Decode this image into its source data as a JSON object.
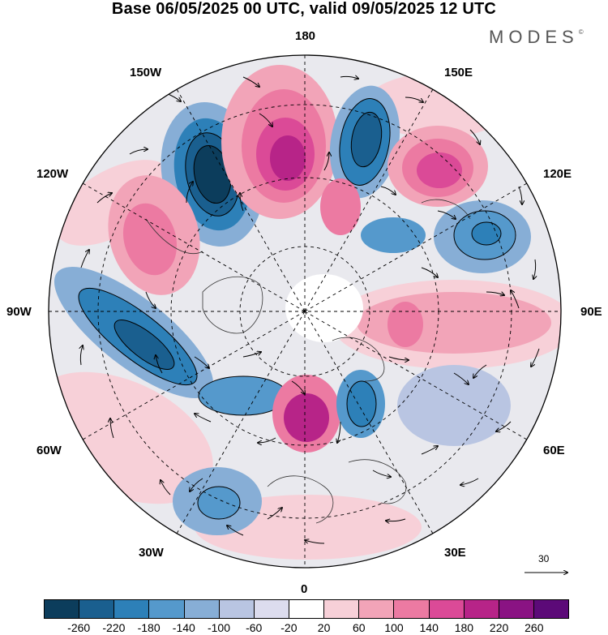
{
  "header": {
    "title": "Base 06/05/2025 00 UTC, valid 09/05/2025 12 UTC",
    "brand": "MODES",
    "brand_mark": "©"
  },
  "map": {
    "projection": "north-polar-stereographic",
    "longitude_labels": {
      "top": "180",
      "bottom": "0",
      "left": "90W",
      "right": "90E",
      "upper_left_1": "150W",
      "upper_left_2": "120W",
      "lower_left_1": "60W",
      "lower_left_2": "30W",
      "upper_right_1": "150E",
      "upper_right_2": "120E",
      "lower_right_1": "60E",
      "lower_right_2": "30E"
    },
    "wind_reference_value": "30",
    "anomaly_centers": [
      {
        "name": "negative-east-siberia",
        "sign": "negative"
      },
      {
        "name": "positive-near-180",
        "sign": "positive"
      },
      {
        "name": "negative-150e",
        "sign": "negative"
      },
      {
        "name": "positive-120e",
        "sign": "positive"
      },
      {
        "name": "negative-100e",
        "sign": "negative"
      },
      {
        "name": "positive-north-pacific",
        "sign": "positive"
      },
      {
        "name": "negative-north-america",
        "sign": "negative"
      },
      {
        "name": "positive-near-pole",
        "sign": "positive"
      },
      {
        "name": "negative-near-pole",
        "sign": "negative"
      },
      {
        "name": "positive-siberia",
        "sign": "positive"
      },
      {
        "name": "positive-atlantic",
        "sign": "positive"
      },
      {
        "name": "negative-atlantic",
        "sign": "negative"
      }
    ]
  },
  "colorbar": {
    "ticks": [
      "-260",
      "-220",
      "-180",
      "-140",
      "-100",
      "-60",
      "-20",
      "20",
      "60",
      "100",
      "140",
      "180",
      "220",
      "260"
    ],
    "colors": [
      "#0c3d5c",
      "#1a5f8f",
      "#2d80b8",
      "#5599cc",
      "#87aed6",
      "#b9c5e2",
      "#dcdcee",
      "#ffffff",
      "#f7d0d8",
      "#f2a4b8",
      "#ec7aa2",
      "#db4a97",
      "#b72488",
      "#8a1383",
      "#5c0a78"
    ]
  }
}
